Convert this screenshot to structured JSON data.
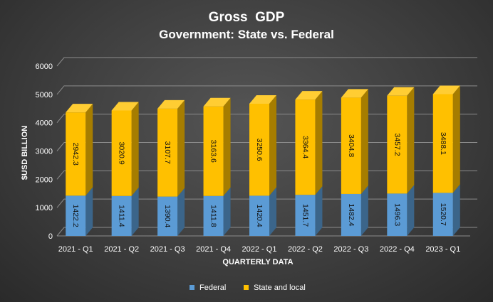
{
  "chart_data": {
    "type": "bar",
    "stacked": true,
    "title": "Gross  GDP",
    "subtitle": "Government: State vs. Federal",
    "xlabel": "QUARTERLY DATA",
    "ylabel": "$USD BILLION",
    "ylim": [
      0,
      6000
    ],
    "yticks": [
      0,
      1000,
      2000,
      3000,
      4000,
      5000,
      6000
    ],
    "grid": true,
    "legend_position": "bottom",
    "categories": [
      "2021 - Q1",
      "2021 - Q2",
      "2021 - Q3",
      "2021 - Q4",
      "2022 - Q1",
      "2022 - Q2",
      "2022 - Q3",
      "2022 - Q4",
      "2023 - Q1"
    ],
    "series": [
      {
        "name": "Federal",
        "color": "#5b9bd5",
        "values": [
          1422.2,
          1411.4,
          1390.4,
          1411.8,
          1420.4,
          1451.7,
          1482.4,
          1496.3,
          1520.7
        ],
        "labels": [
          "1422.2",
          "1411.4",
          "1390.4",
          "1411.8",
          "1420.4",
          "1451.7",
          "1482.4",
          "1496.3",
          "1520.7"
        ]
      },
      {
        "name": "State and local",
        "color": "#ffc000",
        "values": [
          2942.3,
          3020.9,
          3107.7,
          3163.6,
          3250.6,
          3364.4,
          3404.8,
          3457.2,
          3488.1
        ],
        "labels": [
          "2942.3",
          "3020.9",
          "3107.7",
          "3163.6",
          "3250.6",
          "3364.4",
          "3404.8",
          "3457.2",
          "3488.1"
        ]
      }
    ]
  }
}
